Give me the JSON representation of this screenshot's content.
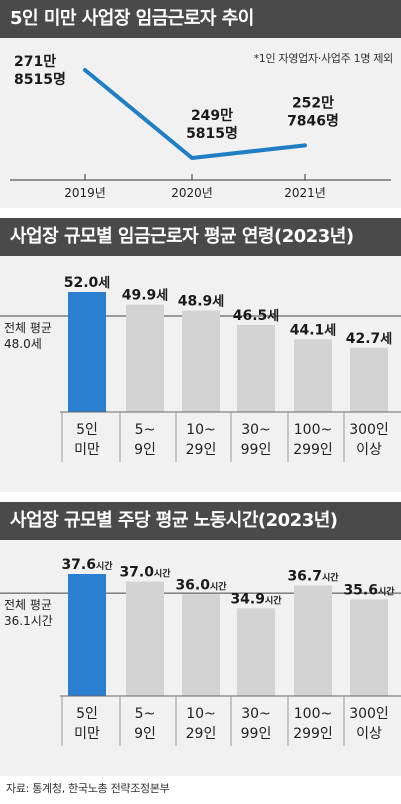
{
  "sections": {
    "trend_title": "5인 미만 사업장 임금근로자 추이",
    "trend_note": "*1인 자영업자·사업주 1명 제외",
    "age_title": "사업장 규모별 임금근로자 평균 연령(2023년)",
    "hours_title": "사업장 규모별 주당 평균 노동시간(2023년)"
  },
  "source": "자료: 통계청, 한국노총 전략조정본부",
  "colors": {
    "header": "#4a4a4a",
    "panel": "#f1f1f1",
    "line": "#1f7fc4",
    "highlight_bar": "#2b7fd0",
    "gray_bar": "#d3d3d3"
  },
  "chart_data": [
    {
      "type": "line",
      "title": "5인 미만 사업장 임금근로자 추이",
      "note": "*1인 자영업자·사업주 1명 제외",
      "x": [
        "2019년",
        "2020년",
        "2021년"
      ],
      "values": [
        2718515,
        2495815,
        2527846
      ],
      "value_labels": [
        [
          "271만",
          "8515명"
        ],
        [
          "249만",
          "5815명"
        ],
        [
          "252만",
          "7846명"
        ]
      ],
      "y_axis_shown": false
    },
    {
      "type": "bar",
      "title": "사업장 규모별 임금근로자 평균 연령(2023년)",
      "categories": [
        [
          "5인",
          "미만"
        ],
        [
          "5~",
          "9인"
        ],
        [
          "10~",
          "29인"
        ],
        [
          "30~",
          "99인"
        ],
        [
          "100~",
          "299인"
        ],
        [
          "300인",
          "이상"
        ]
      ],
      "values": [
        52.0,
        49.9,
        48.9,
        46.5,
        44.1,
        42.7
      ],
      "value_labels": [
        [
          "52.0",
          "세"
        ],
        [
          "49.9",
          "세"
        ],
        [
          "48.9",
          "세"
        ],
        [
          "46.5",
          "세"
        ],
        [
          "44.1",
          "세"
        ],
        [
          "42.7",
          "세"
        ]
      ],
      "highlight_index": 0,
      "reference": {
        "value": 48.0,
        "label": [
          "전체 평균",
          "48.0세"
        ]
      },
      "ylim": [
        32,
        52
      ]
    },
    {
      "type": "bar",
      "title": "사업장 규모별 주당 평균 노동시간(2023년)",
      "categories": [
        [
          "5인",
          "미만"
        ],
        [
          "5~",
          "9인"
        ],
        [
          "10~",
          "29인"
        ],
        [
          "30~",
          "99인"
        ],
        [
          "100~",
          "299인"
        ],
        [
          "300인",
          "이상"
        ]
      ],
      "values": [
        37.6,
        37.0,
        36.0,
        34.9,
        36.7,
        35.6
      ],
      "value_labels": [
        [
          "37.6",
          "시간"
        ],
        [
          "37.0",
          "시간"
        ],
        [
          "36.0",
          "시간"
        ],
        [
          "34.9",
          "시간"
        ],
        [
          "36.7",
          "시간"
        ],
        [
          "35.6",
          "시간"
        ]
      ],
      "highlight_index": 0,
      "reference": {
        "value": 36.1,
        "label": [
          "전체 평균",
          "36.1시간"
        ]
      },
      "ylim": [
        28,
        37.6
      ]
    }
  ]
}
